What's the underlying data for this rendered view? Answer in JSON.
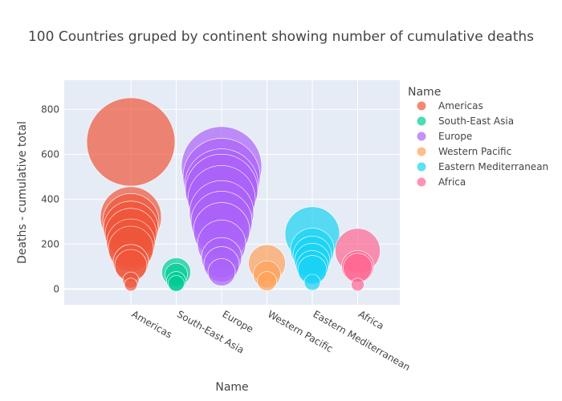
{
  "chart_data": {
    "type": "scatter",
    "bubble": true,
    "title": "100 Countries gruped by continent showing number of cumulative deaths",
    "xlabel": "Name",
    "ylabel": "Deaths - cumulative total",
    "ylim": [
      -70,
      930
    ],
    "yticks": [
      0,
      200,
      400,
      600,
      800
    ],
    "grid": true,
    "legend": {
      "title": "Name",
      "placement": "right"
    },
    "categories": [
      "Americas",
      "South-East Asia",
      "Europe",
      "Western Pacific",
      "Eastern Mediterranean",
      "Africa"
    ],
    "series": [
      {
        "name": "Americas",
        "color": "#ef553b",
        "points": [
          {
            "x": "Americas",
            "y": 655,
            "size": 55
          },
          {
            "x": "Americas",
            "y": 320,
            "size": 38
          },
          {
            "x": "Americas",
            "y": 300,
            "size": 35
          },
          {
            "x": "Americas",
            "y": 270,
            "size": 34
          },
          {
            "x": "Americas",
            "y": 245,
            "size": 32
          },
          {
            "x": "Americas",
            "y": 205,
            "size": 30
          },
          {
            "x": "Americas",
            "y": 180,
            "size": 28
          },
          {
            "x": "Americas",
            "y": 120,
            "size": 22
          },
          {
            "x": "Americas",
            "y": 105,
            "size": 20
          },
          {
            "x": "Americas",
            "y": 40,
            "size": 10
          },
          {
            "x": "Americas",
            "y": 20,
            "size": 8
          }
        ]
      },
      {
        "name": "South-East Asia",
        "color": "#00cc96",
        "points": [
          {
            "x": "South-East Asia",
            "y": 75,
            "size": 18
          },
          {
            "x": "South-East Asia",
            "y": 65,
            "size": 14
          },
          {
            "x": "South-East Asia",
            "y": 35,
            "size": 12
          },
          {
            "x": "South-East Asia",
            "y": 25,
            "size": 10
          }
        ]
      },
      {
        "name": "Europe",
        "color": "#ab63fa",
        "points": [
          {
            "x": "Europe",
            "y": 545,
            "size": 50
          },
          {
            "x": "Europe",
            "y": 500,
            "size": 48
          },
          {
            "x": "Europe",
            "y": 460,
            "size": 46
          },
          {
            "x": "Europe",
            "y": 440,
            "size": 45
          },
          {
            "x": "Europe",
            "y": 400,
            "size": 42
          },
          {
            "x": "Europe",
            "y": 340,
            "size": 40
          },
          {
            "x": "Europe",
            "y": 300,
            "size": 38
          },
          {
            "x": "Europe",
            "y": 260,
            "size": 35
          },
          {
            "x": "Europe",
            "y": 200,
            "size": 30
          },
          {
            "x": "Europe",
            "y": 140,
            "size": 25
          },
          {
            "x": "Europe",
            "y": 110,
            "size": 22
          },
          {
            "x": "Europe",
            "y": 75,
            "size": 17
          }
        ]
      },
      {
        "name": "Western Pacific",
        "color": "#ffa15a",
        "points": [
          {
            "x": "Western Pacific",
            "y": 115,
            "size": 23
          },
          {
            "x": "Western Pacific",
            "y": 65,
            "size": 17
          },
          {
            "x": "Western Pacific",
            "y": 35,
            "size": 12
          }
        ]
      },
      {
        "name": "Eastern Mediterranean",
        "color": "#19d3f3",
        "points": [
          {
            "x": "Eastern Mediterranean",
            "y": 245,
            "size": 34
          },
          {
            "x": "Eastern Mediterranean",
            "y": 175,
            "size": 27
          },
          {
            "x": "Eastern Mediterranean",
            "y": 150,
            "size": 24
          },
          {
            "x": "Eastern Mediterranean",
            "y": 125,
            "size": 22
          },
          {
            "x": "Eastern Mediterranean",
            "y": 100,
            "size": 20
          },
          {
            "x": "Eastern Mediterranean",
            "y": 85,
            "size": 18
          },
          {
            "x": "Eastern Mediterranean",
            "y": 30,
            "size": 10
          }
        ]
      },
      {
        "name": "Africa",
        "color": "#ff6692",
        "points": [
          {
            "x": "Africa",
            "y": 170,
            "size": 28
          },
          {
            "x": "Africa",
            "y": 100,
            "size": 20
          },
          {
            "x": "Africa",
            "y": 95,
            "size": 18
          },
          {
            "x": "Africa",
            "y": 20,
            "size": 8
          }
        ]
      }
    ]
  }
}
